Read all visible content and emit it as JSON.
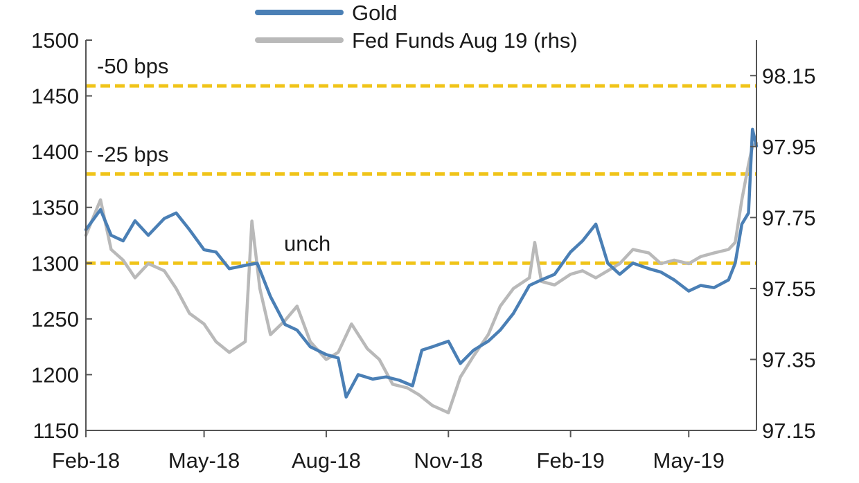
{
  "chart_data": {
    "type": "line",
    "title": "",
    "xlabel": "",
    "ylabel": "",
    "x_ticks": [
      "Feb-18",
      "May-18",
      "Aug-18",
      "Nov-18",
      "Feb-19",
      "May-19"
    ],
    "x_tick_dates": [
      "2018-02-01",
      "2018-05-01",
      "2018-08-01",
      "2018-11-01",
      "2019-02-01",
      "2019-05-01"
    ],
    "xlim": [
      "2018-02-01",
      "2019-06-21"
    ],
    "ylim_left": [
      1150,
      1500
    ],
    "yticks_left": [
      "1500",
      "1450",
      "1400",
      "1350",
      "1300",
      "1250",
      "1200",
      "1150"
    ],
    "ylim_right": [
      97.15,
      98.25
    ],
    "yticks_right": [
      "98.15",
      "97.95",
      "97.75",
      "97.55",
      "97.35",
      "97.15"
    ],
    "legend_position": "top-center",
    "grid": false,
    "reference_lines": [
      {
        "label": "-50 bps",
        "value": 1459,
        "axis": "left"
      },
      {
        "label": "-25 bps",
        "value": 1380,
        "axis": "left"
      },
      {
        "label": "unch",
        "value": 1300,
        "axis": "left"
      }
    ],
    "series": [
      {
        "name": "Gold",
        "axis": "left",
        "color": "#4a7fb5",
        "x": [
          "2018-02-01",
          "2018-02-12",
          "2018-02-20",
          "2018-03-01",
          "2018-03-10",
          "2018-03-20",
          "2018-04-01",
          "2018-04-10",
          "2018-04-20",
          "2018-05-01",
          "2018-05-10",
          "2018-05-20",
          "2018-06-01",
          "2018-06-10",
          "2018-06-20",
          "2018-07-01",
          "2018-07-10",
          "2018-07-20",
          "2018-08-01",
          "2018-08-10",
          "2018-08-16",
          "2018-08-25",
          "2018-09-05",
          "2018-09-15",
          "2018-09-25",
          "2018-10-05",
          "2018-10-12",
          "2018-10-20",
          "2018-11-01",
          "2018-11-10",
          "2018-11-20",
          "2018-12-01",
          "2018-12-10",
          "2018-12-20",
          "2019-01-01",
          "2019-01-10",
          "2019-01-20",
          "2019-02-01",
          "2019-02-10",
          "2019-02-20",
          "2019-03-01",
          "2019-03-10",
          "2019-03-20",
          "2019-04-01",
          "2019-04-10",
          "2019-04-20",
          "2019-05-01",
          "2019-05-10",
          "2019-05-20",
          "2019-05-31",
          "2019-06-05",
          "2019-06-10",
          "2019-06-15",
          "2019-06-18",
          "2019-06-21"
        ],
        "values": [
          1330,
          1348,
          1325,
          1320,
          1338,
          1325,
          1340,
          1345,
          1330,
          1312,
          1310,
          1295,
          1298,
          1300,
          1270,
          1245,
          1240,
          1225,
          1218,
          1215,
          1180,
          1200,
          1196,
          1198,
          1195,
          1190,
          1222,
          1225,
          1230,
          1210,
          1222,
          1230,
          1240,
          1255,
          1280,
          1285,
          1290,
          1310,
          1320,
          1335,
          1300,
          1290,
          1300,
          1295,
          1292,
          1285,
          1275,
          1280,
          1278,
          1285,
          1300,
          1335,
          1345,
          1420,
          1405
        ]
      },
      {
        "name": "Fed Funds Aug 19 (rhs)",
        "axis": "right",
        "color": "#b9b9b9",
        "x": [
          "2018-02-01",
          "2018-02-12",
          "2018-02-20",
          "2018-03-01",
          "2018-03-10",
          "2018-03-20",
          "2018-04-01",
          "2018-04-10",
          "2018-04-20",
          "2018-05-01",
          "2018-05-10",
          "2018-05-20",
          "2018-06-01",
          "2018-06-06",
          "2018-06-12",
          "2018-06-20",
          "2018-07-01",
          "2018-07-10",
          "2018-07-20",
          "2018-08-01",
          "2018-08-10",
          "2018-08-20",
          "2018-09-01",
          "2018-09-10",
          "2018-09-20",
          "2018-10-01",
          "2018-10-10",
          "2018-10-20",
          "2018-11-01",
          "2018-11-10",
          "2018-11-20",
          "2018-12-01",
          "2018-12-10",
          "2018-12-20",
          "2019-01-01",
          "2019-01-05",
          "2019-01-10",
          "2019-01-20",
          "2019-02-01",
          "2019-02-10",
          "2019-02-20",
          "2019-03-01",
          "2019-03-10",
          "2019-03-20",
          "2019-04-01",
          "2019-04-10",
          "2019-04-20",
          "2019-05-01",
          "2019-05-10",
          "2019-05-20",
          "2019-05-31",
          "2019-06-05",
          "2019-06-10",
          "2019-06-15",
          "2019-06-18",
          "2019-06-21"
        ],
        "values": [
          97.7,
          97.8,
          97.66,
          97.63,
          97.58,
          97.62,
          97.6,
          97.55,
          97.48,
          97.45,
          97.4,
          97.37,
          97.4,
          97.74,
          97.55,
          97.42,
          97.46,
          97.5,
          97.4,
          97.35,
          97.37,
          97.45,
          97.38,
          97.35,
          97.28,
          97.27,
          97.25,
          97.22,
          97.2,
          97.3,
          97.36,
          97.42,
          97.5,
          97.55,
          97.58,
          97.68,
          97.57,
          97.56,
          97.59,
          97.6,
          97.58,
          97.6,
          97.62,
          97.66,
          97.65,
          97.62,
          97.63,
          97.62,
          97.64,
          97.65,
          97.66,
          97.68,
          97.8,
          97.9,
          97.95,
          97.96
        ]
      }
    ]
  }
}
